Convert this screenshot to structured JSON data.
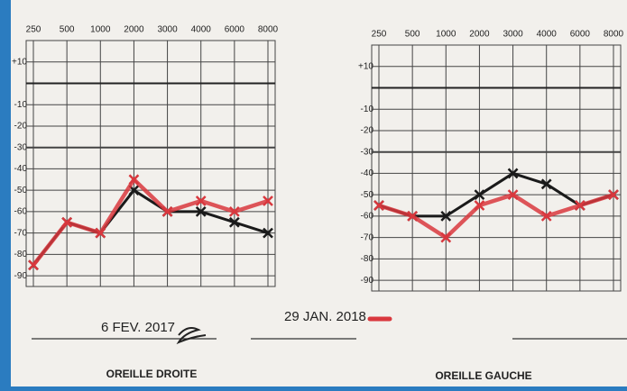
{
  "chart_data": [
    {
      "type": "line",
      "title": "OREILLE DROITE",
      "categories": [
        "250",
        "500",
        "1000",
        "2000",
        "3000",
        "4000",
        "6000",
        "8000"
      ],
      "series": [
        {
          "name": "6 FEV. 2017",
          "color": "#1a1a1a",
          "values": [
            -85,
            -65,
            -70,
            -50,
            -60,
            -60,
            -65,
            -70
          ]
        },
        {
          "name": "29 JAN. 2018",
          "color": "#d9383e",
          "values": [
            -85,
            -65,
            -70,
            -45,
            -60,
            -55,
            -60,
            -55
          ]
        }
      ],
      "ylim": [
        -95,
        20
      ],
      "yticks": [
        {
          "value": 10,
          "label": "+10"
        },
        -10,
        -20,
        -30,
        -40,
        -50,
        -60,
        -70,
        -80,
        -90
      ],
      "hline": 0,
      "grid": true
    },
    {
      "type": "line",
      "title": "OREILLE GAUCHE",
      "categories": [
        "250",
        "500",
        "1000",
        "2000",
        "3000",
        "4000",
        "6000",
        "8000"
      ],
      "series": [
        {
          "color": "#1a1a1a",
          "values": [
            -55,
            -60,
            -60,
            -50,
            -40,
            -45,
            -55,
            -50
          ]
        },
        {
          "color": "#d9383e",
          "values": [
            -55,
            -60,
            -70,
            -55,
            -50,
            -60,
            -55,
            -50
          ]
        }
      ],
      "ylim": [
        -95,
        20
      ],
      "yticks": [
        {
          "value": 10,
          "label": "+10"
        },
        -10,
        -20,
        -30,
        -40,
        -50,
        -60,
        -70,
        -80,
        -90
      ],
      "hline": 0,
      "grid": true
    }
  ]
}
